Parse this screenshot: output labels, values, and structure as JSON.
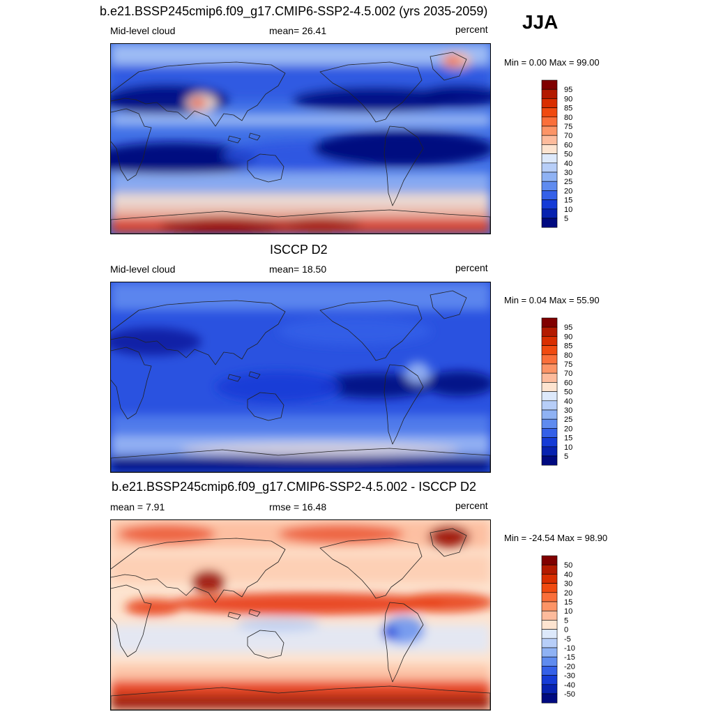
{
  "season": "JJA",
  "panels": [
    {
      "title": "b.e21.BSSP245cmip6.f09_g17.CMIP6-SSP2-4.5.002 (yrs 2035-2059)",
      "left_label": "Mid-level cloud",
      "center_label": "mean=  26.41",
      "right_label": "percent",
      "minmax": "Min =   0.00 Max =  99.00",
      "colorbar": {
        "labels": [
          "95",
          "90",
          "85",
          "80",
          "75",
          "70",
          "60",
          "50",
          "40",
          "30",
          "25",
          "20",
          "15",
          "10",
          "5"
        ],
        "colors": [
          "#800000",
          "#b31a00",
          "#d92e00",
          "#f04a10",
          "#fa6f3a",
          "#fc9466",
          "#fdbb9c",
          "#fde4d0",
          "#dde9fb",
          "#b7cef8",
          "#8fb2f4",
          "#5f8bef",
          "#3460e8",
          "#153bd6",
          "#0722b0",
          "#000a80"
        ]
      }
    },
    {
      "title": "ISCCP D2",
      "left_label": "Mid-level cloud",
      "center_label": "mean=  18.50",
      "right_label": "percent",
      "minmax": "Min =   0.04 Max =  55.90",
      "colorbar": {
        "labels": [
          "95",
          "90",
          "85",
          "80",
          "75",
          "70",
          "60",
          "50",
          "40",
          "30",
          "25",
          "20",
          "15",
          "10",
          "5"
        ],
        "colors": [
          "#800000",
          "#b31a00",
          "#d92e00",
          "#f04a10",
          "#fa6f3a",
          "#fc9466",
          "#fdbb9c",
          "#fde4d0",
          "#dde9fb",
          "#b7cef8",
          "#8fb2f4",
          "#5f8bef",
          "#3460e8",
          "#153bd6",
          "#0722b0",
          "#000a80"
        ]
      }
    },
    {
      "title": "b.e21.BSSP245cmip6.f09_g17.CMIP6-SSP2-4.5.002 - ISCCP D2",
      "left_label": "mean =   7.91",
      "center_label": "rmse =  16.48",
      "right_label": "percent",
      "minmax": "Min = -24.54 Max =  98.90",
      "colorbar": {
        "labels": [
          "50",
          "40",
          "30",
          "20",
          "15",
          "10",
          "5",
          "0",
          "-5",
          "-10",
          "-15",
          "-20",
          "-30",
          "-40",
          "-50"
        ],
        "colors": [
          "#800000",
          "#b31a00",
          "#d92e00",
          "#f04a10",
          "#fa6f3a",
          "#fc9466",
          "#fdbb9c",
          "#fde4d0",
          "#dde9fb",
          "#b7cef8",
          "#8fb2f4",
          "#5f8bef",
          "#3460e8",
          "#153bd6",
          "#0722b0",
          "#000a80"
        ]
      }
    }
  ],
  "map_colors": {
    "ocean_base": "#3f6fe6",
    "deep_blue": "#000a80",
    "mid_blue": "#2a52e0",
    "light_blue": "#a7c3f6",
    "pale": "#fde4d0",
    "light_red": "#fdbb9c",
    "red": "#e8401a",
    "dark_red": "#9a0c00",
    "coast": "#222222"
  }
}
